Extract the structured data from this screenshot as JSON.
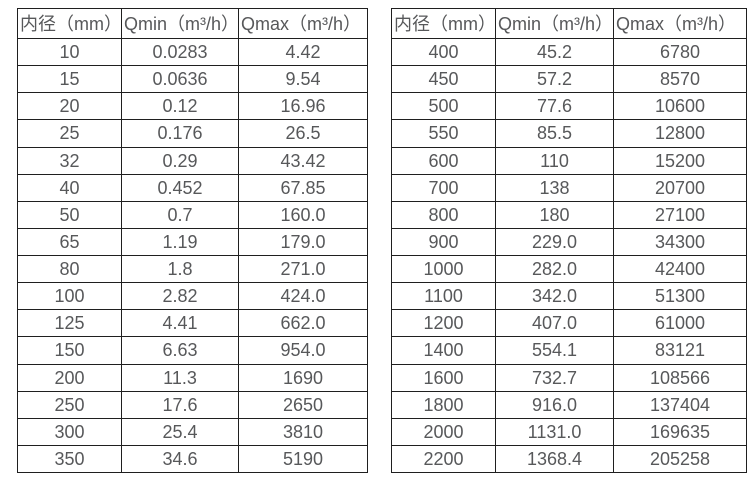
{
  "page": {
    "background_color": "#ffffff",
    "border_color": "#1f1f1f",
    "text_color": "#57585a"
  },
  "tables": [
    {
      "name": "flow-spec-table-small-diameters",
      "headers": [
        "内径（mm）",
        "Qmin（m³/h）",
        "Qmax（m³/h）"
      ],
      "rows": [
        [
          "10",
          "0.0283",
          "4.42"
        ],
        [
          "15",
          "0.0636",
          "9.54"
        ],
        [
          "20",
          "0.12",
          "16.96"
        ],
        [
          "25",
          "0.176",
          "26.5"
        ],
        [
          "32",
          "0.29",
          "43.42"
        ],
        [
          "40",
          "0.452",
          "67.85"
        ],
        [
          "50",
          "0.7",
          "160.0"
        ],
        [
          "65",
          "1.19",
          "179.0"
        ],
        [
          "80",
          "1.8",
          "271.0"
        ],
        [
          "100",
          "2.82",
          "424.0"
        ],
        [
          "125",
          "4.41",
          "662.0"
        ],
        [
          "150",
          "6.63",
          "954.0"
        ],
        [
          "200",
          "11.3",
          "1690"
        ],
        [
          "250",
          "17.6",
          "2650"
        ],
        [
          "300",
          "25.4",
          "3810"
        ],
        [
          "350",
          "34.6",
          "5190"
        ]
      ]
    },
    {
      "name": "flow-spec-table-large-diameters",
      "headers": [
        "内径（mm）",
        "Qmin（m³/h）",
        "Qmax（m³/h）"
      ],
      "rows": [
        [
          "400",
          "45.2",
          "6780"
        ],
        [
          "450",
          "57.2",
          "8570"
        ],
        [
          "500",
          "77.6",
          "10600"
        ],
        [
          "550",
          "85.5",
          "12800"
        ],
        [
          "600",
          "110",
          "15200"
        ],
        [
          "700",
          "138",
          "20700"
        ],
        [
          "800",
          "180",
          "27100"
        ],
        [
          "900",
          "229.0",
          "34300"
        ],
        [
          "1000",
          "282.0",
          "42400"
        ],
        [
          "1100",
          "342.0",
          "51300"
        ],
        [
          "1200",
          "407.0",
          "61000"
        ],
        [
          "1400",
          "554.1",
          "83121"
        ],
        [
          "1600",
          "732.7",
          "108566"
        ],
        [
          "1800",
          "916.0",
          "137404"
        ],
        [
          "2000",
          "1131.0",
          "169635"
        ],
        [
          "2200",
          "1368.4",
          "205258"
        ]
      ]
    }
  ]
}
